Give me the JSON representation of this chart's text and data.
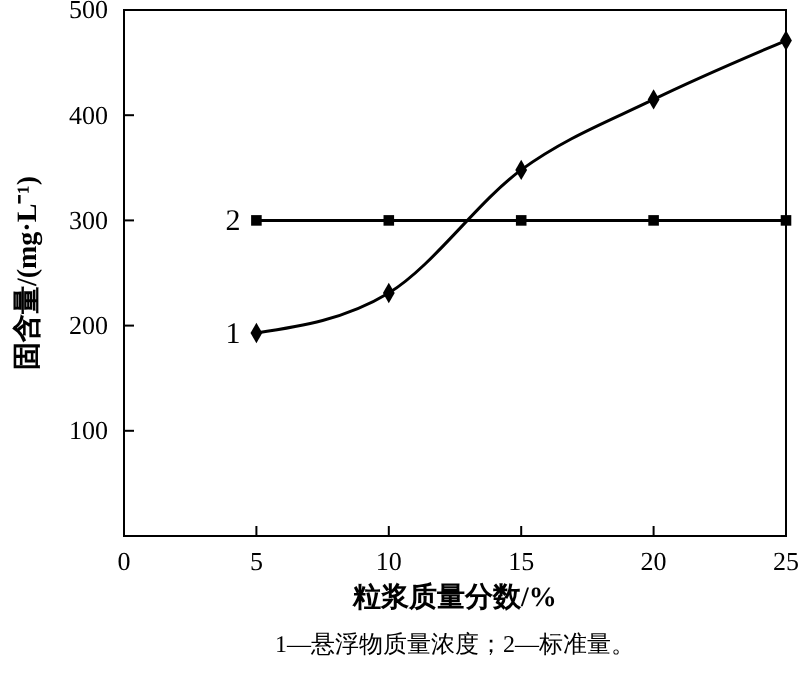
{
  "chart_data": {
    "type": "line",
    "xlabel": "粒浆质量分数/%",
    "ylabel": "固含量/(mg·L⁻¹)",
    "annotations": [
      "1—悬浮物质量浓度；2—标准量。"
    ],
    "x": [
      5,
      10,
      15,
      20,
      25
    ],
    "xlim": [
      0,
      25
    ],
    "xticks": [
      0,
      5,
      10,
      15,
      20,
      25
    ],
    "ylim": [
      0,
      500
    ],
    "yticks": [
      {
        "value": 0,
        "label": null
      },
      100,
      200,
      300,
      400,
      500
    ],
    "grid": false,
    "legend": false,
    "series": [
      {
        "name": "1",
        "color": "#000000",
        "marker": "diamond",
        "values": [
          193,
          231,
          348,
          415,
          471
        ]
      },
      {
        "name": "2",
        "color": "#000000",
        "marker": "square",
        "values": [
          300,
          300,
          300,
          300,
          300
        ]
      }
    ]
  }
}
